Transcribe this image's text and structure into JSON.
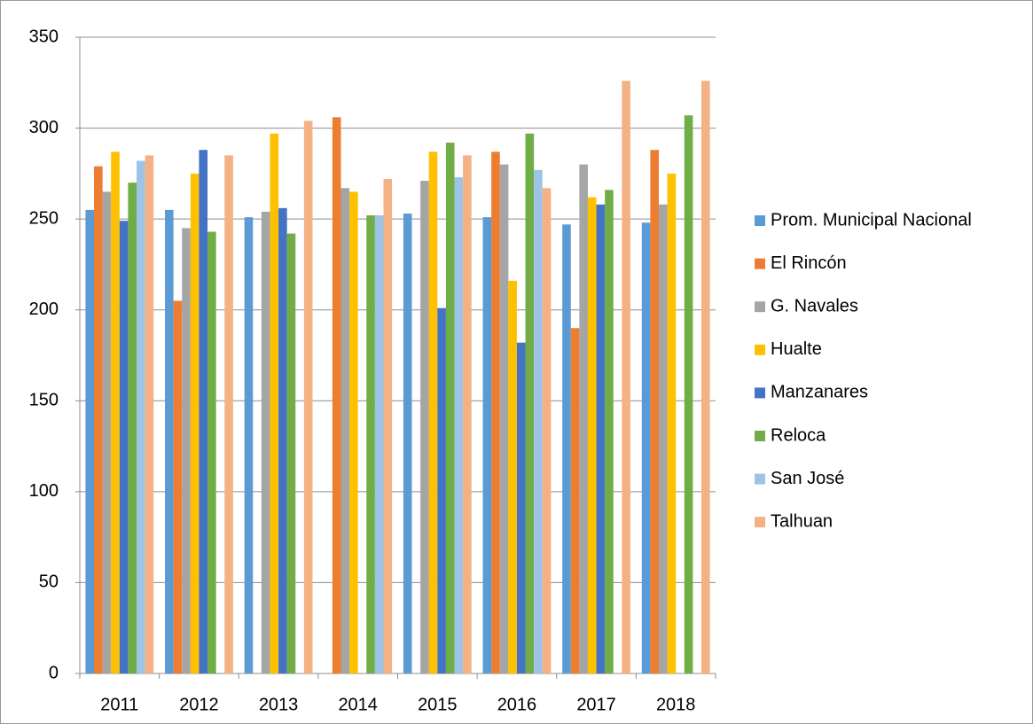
{
  "chart_data": {
    "type": "bar",
    "categories": [
      "2011",
      "2012",
      "2013",
      "2014",
      "2015",
      "2016",
      "2017",
      "2018"
    ],
    "series": [
      {
        "name": "Prom. Municipal Nacional",
        "color": "#5b9bd5",
        "values": [
          255,
          255,
          251,
          null,
          253,
          251,
          247,
          248
        ]
      },
      {
        "name": "El Rincón",
        "color": "#ed7d31",
        "values": [
          279,
          205,
          null,
          306,
          null,
          287,
          190,
          288
        ]
      },
      {
        "name": "G. Navales",
        "color": "#a5a5a5",
        "values": [
          265,
          245,
          254,
          267,
          271,
          280,
          280,
          258
        ]
      },
      {
        "name": "Hualte",
        "color": "#ffc000",
        "values": [
          287,
          275,
          297,
          265,
          287,
          216,
          262,
          275
        ]
      },
      {
        "name": "Manzanares",
        "color": "#4472c4",
        "values": [
          249,
          288,
          256,
          null,
          201,
          182,
          258,
          null
        ]
      },
      {
        "name": "Reloca",
        "color": "#70ad47",
        "values": [
          270,
          243,
          242,
          252,
          292,
          297,
          266,
          307
        ]
      },
      {
        "name": "San José",
        "color": "#9dc3e6",
        "values": [
          282,
          null,
          null,
          252,
          273,
          277,
          null,
          null
        ]
      },
      {
        "name": "Talhuan",
        "color": "#f4b183",
        "values": [
          285,
          285,
          304,
          272,
          285,
          267,
          326,
          326
        ]
      }
    ],
    "ylim": [
      0,
      350
    ],
    "yticks": [
      0,
      50,
      100,
      150,
      200,
      250,
      300,
      350
    ],
    "grid": true,
    "legend": "right"
  }
}
